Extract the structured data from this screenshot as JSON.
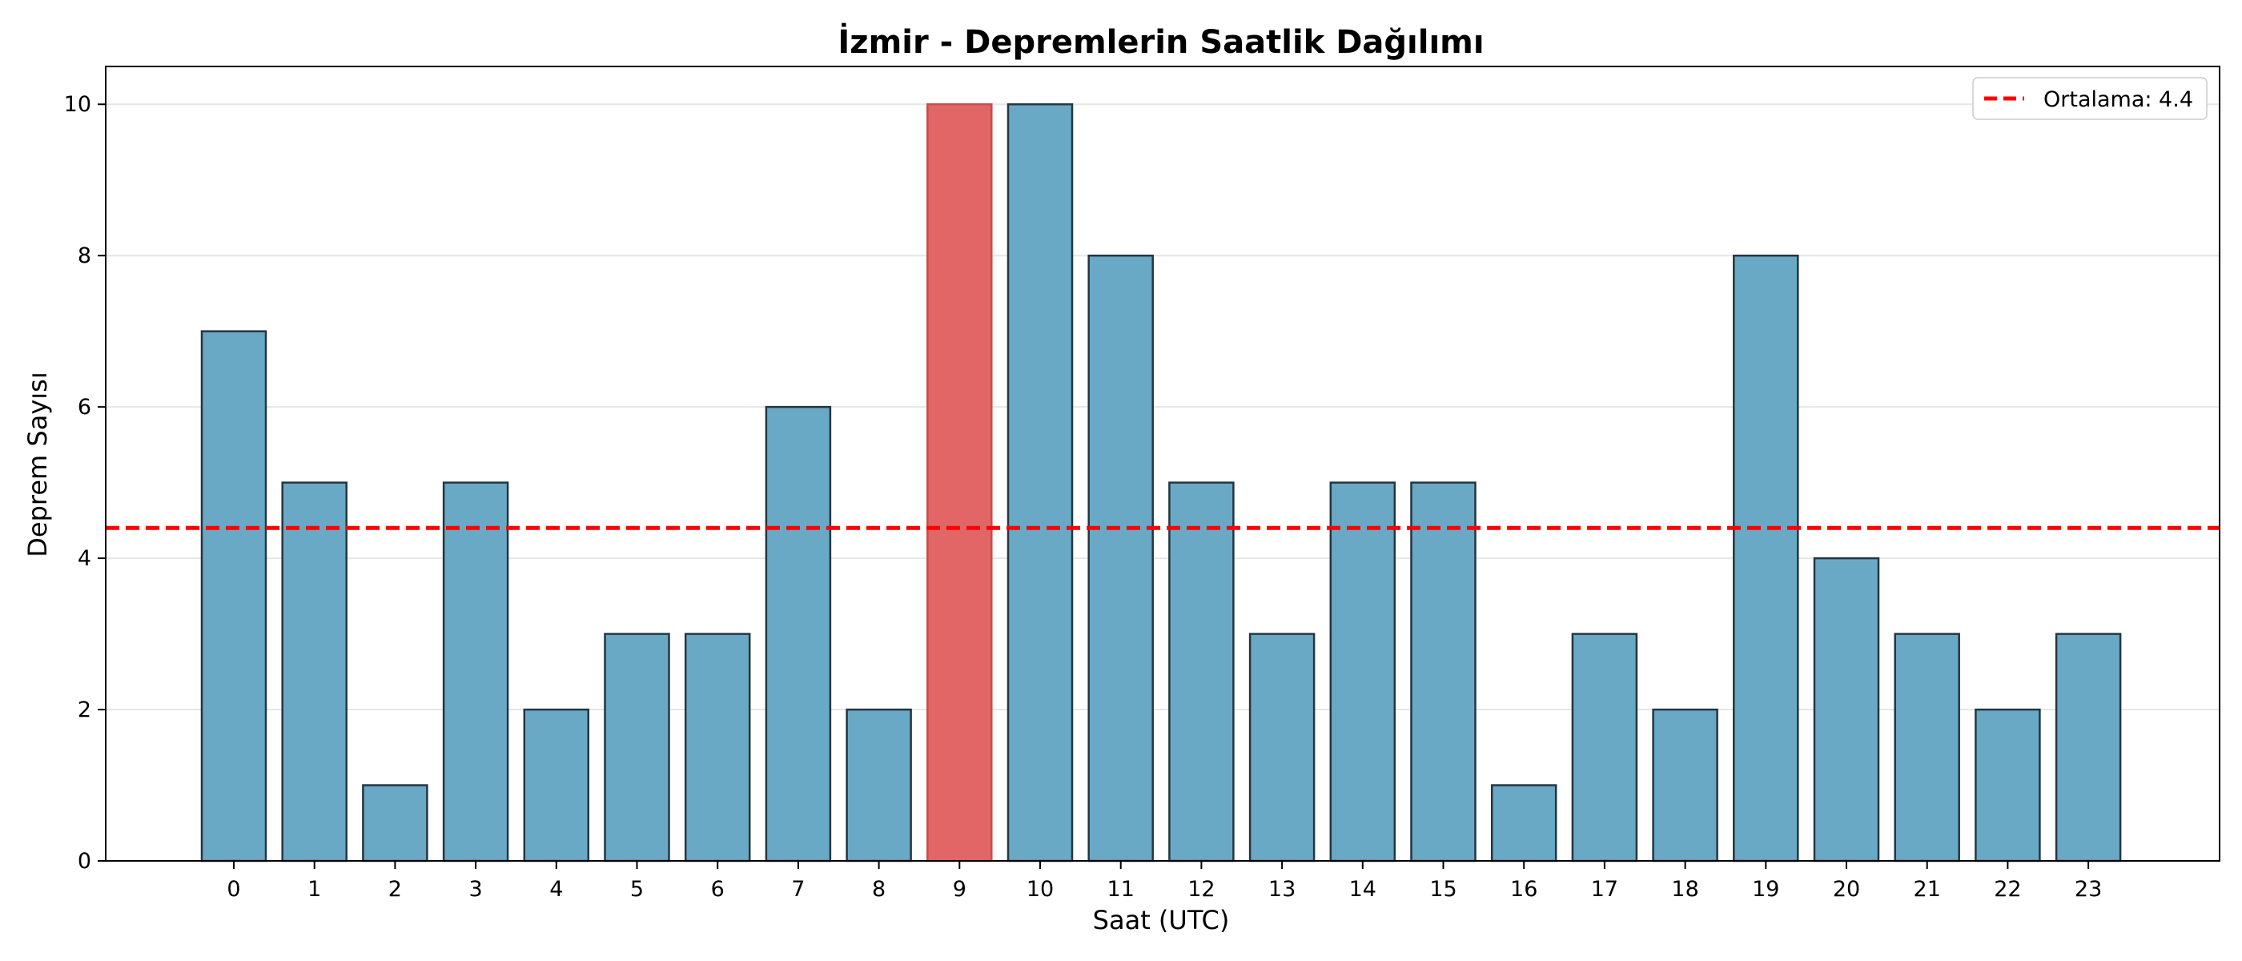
{
  "chart_data": {
    "type": "bar",
    "title": "İzmir - Depremlerin Saatlik Dağılımı",
    "xlabel": "Saat (UTC)",
    "ylabel": "Deprem Sayısı",
    "categories": [
      "0",
      "1",
      "2",
      "3",
      "4",
      "5",
      "6",
      "7",
      "8",
      "9",
      "10",
      "11",
      "12",
      "13",
      "14",
      "15",
      "16",
      "17",
      "18",
      "19",
      "20",
      "21",
      "22",
      "23"
    ],
    "values": [
      7,
      5,
      1,
      5,
      2,
      3,
      3,
      6,
      2,
      10,
      10,
      8,
      5,
      3,
      5,
      5,
      1,
      3,
      2,
      8,
      4,
      3,
      2,
      3
    ],
    "highlight_index": 9,
    "ylim": [
      0,
      10.5
    ],
    "yticks": [
      0,
      2,
      4,
      6,
      8,
      10
    ],
    "grid": "horizontal",
    "mean_line": {
      "value": 4.4,
      "label": "Ortalama: 4.4",
      "color": "#ff0000",
      "style": "dashed"
    },
    "legend_position": "top-right",
    "colors": {
      "bar": "#6aa9c5",
      "bar_edge": "#243640",
      "highlight": "#e26666",
      "highlight_edge": "#cc4a4a"
    }
  }
}
